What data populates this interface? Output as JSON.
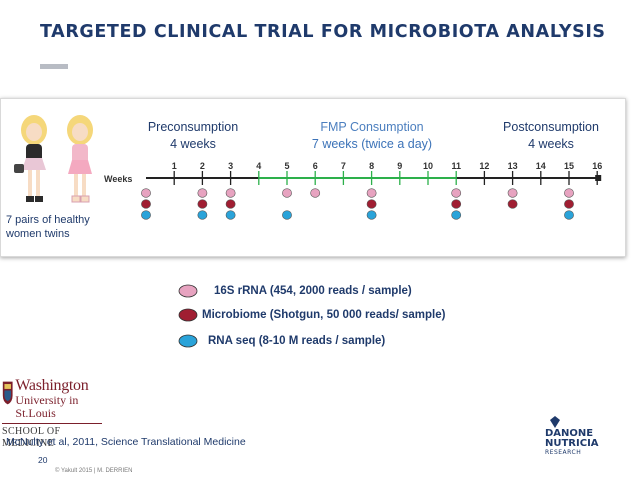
{
  "title": "TARGETED CLINICAL TRIAL FOR MICROBIOTA ANALYSIS",
  "phases": [
    {
      "label": "Preconsumption",
      "duration": "4 weeks"
    },
    {
      "label": "FMP Consumption",
      "duration": "7 weeks (twice a day)"
    },
    {
      "label": "Postconsumption",
      "duration": "4 weeks"
    }
  ],
  "participants": "7 pairs of healthy women twins",
  "timeline": {
    "axis_label": "Weeks",
    "ticks": [
      "1",
      "2",
      "3",
      "4",
      "5",
      "6",
      "7",
      "8",
      "9",
      "10",
      "11",
      "12",
      "13",
      "14",
      "15",
      "16"
    ],
    "phase_colors": {
      "pre": "#222222",
      "fmp": "#2db04b",
      "post": "#222222"
    },
    "samples": [
      {
        "week": 0,
        "types": [
          "16S",
          "microbiome",
          "rnaseq"
        ]
      },
      {
        "week": 2,
        "types": [
          "16S",
          "microbiome",
          "rnaseq"
        ]
      },
      {
        "week": 3,
        "types": [
          "16S",
          "microbiome",
          "rnaseq"
        ]
      },
      {
        "week": 5,
        "types": [
          "16S",
          "rnaseq"
        ]
      },
      {
        "week": 6,
        "types": [
          "16S"
        ]
      },
      {
        "week": 8,
        "types": [
          "16S",
          "microbiome",
          "rnaseq"
        ]
      },
      {
        "week": 11,
        "types": [
          "16S",
          "microbiome",
          "rnaseq"
        ]
      },
      {
        "week": 13,
        "types": [
          "16S",
          "microbiome"
        ]
      },
      {
        "week": 15,
        "types": [
          "16S",
          "microbiome",
          "rnaseq"
        ]
      }
    ]
  },
  "legend": [
    {
      "key": "16S",
      "label": "16S rRNA (454, 2000 reads / sample)",
      "color": "#e7a3c0"
    },
    {
      "key": "microbiome",
      "label": "Microbiome (Shotgun, 50 000 reads/ sample)",
      "color": "#a01e32"
    },
    {
      "key": "rnaseq",
      "label": "RNA seq (8-10 M reads / sample)",
      "color": "#2aa3d9"
    }
  ],
  "logos": {
    "washington": {
      "line1": "Washington",
      "line2": "University in St.Louis",
      "line3": "SCHOOL OF MEDICINE"
    },
    "danone": {
      "line1": "DANONE",
      "line2": "NUTRICIA",
      "line3": "RESEARCH"
    }
  },
  "citation": "McNulty et al, 2011, Science Translational Medicine",
  "page_number": "20",
  "copyright": "© Yakult 2015 | M. DERRIEN"
}
